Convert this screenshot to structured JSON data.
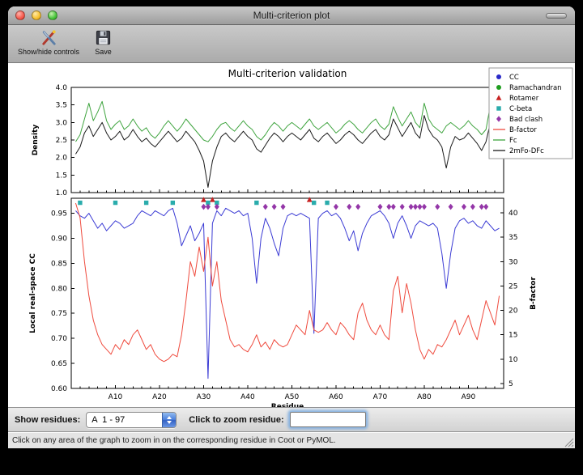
{
  "titlebar": {
    "title": "Multi-criterion plot"
  },
  "toolbar": {
    "buttons": [
      {
        "label": "Show/hide controls",
        "icon": "crossed-tools-icon"
      },
      {
        "label": "Save",
        "icon": "floppy-disk-icon"
      }
    ]
  },
  "controls": {
    "show_residues_label": "Show residues:",
    "residue_range_value": "A  1 - 97",
    "zoom_residue_label": "Click to zoom residue:",
    "zoom_residue_value": ""
  },
  "statusbar": {
    "text": "Click on any area of the graph to zoom in on the corresponding residue in Coot or PyMOL."
  },
  "chart_data": [
    {
      "type": "line",
      "title": "Multi-criterion validation",
      "ylabel": "Density",
      "xlim": [
        0,
        98
      ],
      "ylim": [
        1.0,
        4.0
      ],
      "yticks": [
        1.0,
        1.5,
        2.0,
        2.5,
        3.0,
        3.5,
        4.0
      ],
      "series": [
        {
          "name": "Fc",
          "color": "#3fa43f",
          "values": [
            2.45,
            2.65,
            3.1,
            3.55,
            3.05,
            3.3,
            3.6,
            3.05,
            2.8,
            2.95,
            3.05,
            2.8,
            2.9,
            3.1,
            2.9,
            2.75,
            2.85,
            2.65,
            2.55,
            2.7,
            2.9,
            3.05,
            2.9,
            2.75,
            2.9,
            3.1,
            2.95,
            2.8,
            2.65,
            2.5,
            2.45,
            2.6,
            2.8,
            2.95,
            3.0,
            2.85,
            2.75,
            2.9,
            3.05,
            2.9,
            2.8,
            2.6,
            2.5,
            2.65,
            2.85,
            3.0,
            2.9,
            2.75,
            2.9,
            3.0,
            2.9,
            2.8,
            2.95,
            3.1,
            2.9,
            2.8,
            2.9,
            3.0,
            2.85,
            2.7,
            2.8,
            2.95,
            3.05,
            2.95,
            2.8,
            2.7,
            2.85,
            3.0,
            3.1,
            2.9,
            2.8,
            2.95,
            3.45,
            3.15,
            2.9,
            3.1,
            3.3,
            3.0,
            2.85,
            3.55,
            3.1,
            2.9,
            2.8,
            2.7,
            2.9,
            3.0,
            2.9,
            2.8,
            2.9,
            3.05,
            2.9,
            2.8,
            2.65,
            2.8,
            3.5,
            3.2,
            3.0
          ]
        },
        {
          "name": "2mFo-DFc",
          "color": "#1a1a1a",
          "values": [
            2.1,
            2.3,
            2.7,
            2.9,
            2.6,
            2.8,
            3.0,
            2.7,
            2.5,
            2.6,
            2.75,
            2.5,
            2.6,
            2.8,
            2.6,
            2.45,
            2.55,
            2.4,
            2.3,
            2.45,
            2.6,
            2.75,
            2.6,
            2.45,
            2.55,
            2.75,
            2.6,
            2.45,
            2.2,
            1.9,
            1.15,
            1.9,
            2.3,
            2.6,
            2.7,
            2.55,
            2.45,
            2.6,
            2.75,
            2.6,
            2.5,
            2.25,
            2.15,
            2.35,
            2.55,
            2.7,
            2.6,
            2.45,
            2.6,
            2.7,
            2.6,
            2.5,
            2.65,
            2.8,
            2.55,
            2.45,
            2.6,
            2.7,
            2.55,
            2.4,
            2.5,
            2.65,
            2.75,
            2.65,
            2.5,
            2.4,
            2.55,
            2.7,
            2.8,
            2.6,
            2.5,
            2.65,
            3.1,
            2.85,
            2.6,
            2.8,
            3.0,
            2.7,
            2.55,
            3.2,
            2.8,
            2.6,
            2.5,
            2.3,
            1.7,
            2.3,
            2.6,
            2.5,
            2.55,
            2.7,
            2.55,
            2.4,
            2.2,
            2.45,
            3.0,
            2.85,
            2.9
          ]
        }
      ],
      "legend": {
        "position": "upper right",
        "entries": [
          {
            "label": "CC",
            "marker": "circle",
            "color": "#2929c8"
          },
          {
            "label": "Ramachandran",
            "marker": "circle",
            "color": "#1f9e1f"
          },
          {
            "label": "Rotamer",
            "marker": "triangle",
            "color": "#c82121"
          },
          {
            "label": "C-beta",
            "marker": "square",
            "color": "#2aacac"
          },
          {
            "label": "Bad clash",
            "marker": "diamond",
            "color": "#9436a8"
          },
          {
            "label": "B-factor",
            "marker": "line",
            "color": "#ef4b3e"
          },
          {
            "label": "Fc",
            "marker": "line",
            "color": "#3fa43f"
          },
          {
            "label": "2mFo-DFc",
            "marker": "line",
            "color": "#1a1a1a"
          }
        ]
      }
    },
    {
      "type": "line",
      "xlabel": "Residue",
      "ylabel": "Local real-space CC",
      "ylabel_right": "B-factor",
      "xlim": [
        0,
        98
      ],
      "ylim": [
        0.6,
        0.98
      ],
      "yticks": [
        0.6,
        0.65,
        0.7,
        0.75,
        0.8,
        0.85,
        0.9,
        0.95
      ],
      "ylim_right": [
        4,
        43
      ],
      "yticks_right": [
        5,
        10,
        15,
        20,
        25,
        30,
        35,
        40
      ],
      "xticks": [
        10,
        20,
        30,
        40,
        50,
        60,
        70,
        80,
        90
      ],
      "xtick_labels": [
        "A10",
        "A20",
        "A30",
        "A40",
        "A50",
        "A60",
        "A70",
        "A80",
        "A90"
      ],
      "series": [
        {
          "name": "CC",
          "axis": "left",
          "color": "#3b3bd4",
          "values": [
            0.955,
            0.945,
            0.94,
            0.95,
            0.935,
            0.92,
            0.93,
            0.915,
            0.925,
            0.935,
            0.93,
            0.92,
            0.925,
            0.93,
            0.945,
            0.955,
            0.95,
            0.945,
            0.955,
            0.95,
            0.945,
            0.955,
            0.96,
            0.93,
            0.885,
            0.905,
            0.925,
            0.895,
            0.91,
            0.93,
            0.62,
            0.93,
            0.955,
            0.945,
            0.96,
            0.955,
            0.95,
            0.955,
            0.945,
            0.95,
            0.9,
            0.81,
            0.9,
            0.94,
            0.92,
            0.89,
            0.865,
            0.92,
            0.945,
            0.95,
            0.945,
            0.95,
            0.945,
            0.94,
            0.71,
            0.94,
            0.95,
            0.955,
            0.945,
            0.95,
            0.94,
            0.92,
            0.895,
            0.915,
            0.875,
            0.91,
            0.93,
            0.945,
            0.95,
            0.955,
            0.945,
            0.93,
            0.9,
            0.93,
            0.945,
            0.925,
            0.9,
            0.925,
            0.935,
            0.93,
            0.925,
            0.93,
            0.92,
            0.87,
            0.8,
            0.87,
            0.92,
            0.935,
            0.94,
            0.93,
            0.935,
            0.925,
            0.92,
            0.935,
            0.925,
            0.915,
            0.92
          ]
        },
        {
          "name": "B-factor",
          "axis": "right",
          "color": "#ef4b3e",
          "values": [
            42,
            39,
            30,
            23,
            18,
            15,
            13,
            12,
            11,
            13,
            12,
            14,
            13,
            15,
            16,
            14,
            12,
            13,
            11,
            10,
            9.5,
            10,
            11,
            10.5,
            15,
            22,
            30,
            27,
            33,
            28,
            35,
            25,
            30,
            22,
            18,
            14,
            12.5,
            13,
            12,
            11.5,
            13,
            15,
            12.5,
            13.5,
            12,
            14,
            13,
            12.5,
            13,
            15,
            17,
            16,
            15,
            20,
            16,
            15.5,
            16,
            17.5,
            16,
            15,
            17.5,
            16.5,
            15,
            14,
            19.5,
            21.5,
            18,
            16,
            15,
            17,
            15,
            14,
            24,
            27,
            19.5,
            25.5,
            21.5,
            16,
            12,
            10,
            12,
            11,
            13,
            12.5,
            14,
            16,
            18,
            15,
            17,
            19,
            16,
            14,
            18,
            22,
            19.5,
            17,
            23
          ]
        }
      ],
      "markers": [
        {
          "name": "Rotamer",
          "shape": "triangle",
          "color": "#c82121",
          "y": 0.977,
          "x": [
            30,
            32,
            54
          ]
        },
        {
          "name": "C-beta",
          "shape": "square",
          "color": "#2aacac",
          "y": 0.971,
          "x": [
            2,
            10,
            17,
            23,
            31,
            33,
            42,
            55,
            58
          ]
        },
        {
          "name": "Bad clash",
          "shape": "diamond",
          "color": "#9436a8",
          "y": 0.963,
          "x": [
            30,
            31,
            33,
            44,
            46,
            48,
            60,
            63,
            65,
            70,
            72,
            73,
            75,
            77,
            78,
            79,
            80,
            83,
            86,
            89,
            91,
            93,
            94
          ]
        }
      ]
    }
  ]
}
